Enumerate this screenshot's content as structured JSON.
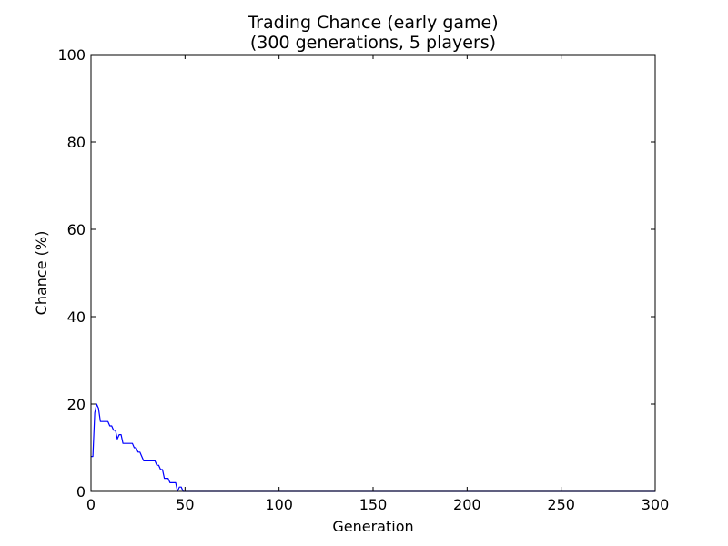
{
  "chart_data": {
    "type": "line",
    "title": "Trading Chance (early game)",
    "subtitle": "(300 generations, 5 players)",
    "xlabel": "Generation",
    "ylabel": "Chance (%)",
    "xlim": [
      0,
      300
    ],
    "ylim": [
      0,
      100
    ],
    "xticks": [
      0,
      50,
      100,
      150,
      200,
      250,
      300
    ],
    "yticks": [
      0,
      20,
      40,
      60,
      80,
      100
    ],
    "grid": false,
    "line_color": "#0000ff",
    "series": [
      {
        "x": [
          0,
          1,
          2,
          3,
          4,
          5,
          6,
          7,
          8,
          9,
          10,
          11,
          12,
          13,
          14,
          15,
          16,
          17,
          18,
          19,
          20,
          21,
          22,
          23,
          24,
          25,
          26,
          27,
          28,
          29,
          30,
          31,
          32,
          33,
          34,
          35,
          36,
          37,
          38,
          39,
          40,
          41,
          42,
          43,
          44,
          45,
          46,
          47,
          48,
          49,
          50,
          60,
          80,
          100,
          150,
          200,
          250,
          300
        ],
        "y": [
          8,
          8,
          18,
          20,
          19,
          16,
          16,
          16,
          16,
          16,
          15,
          15,
          14,
          14,
          12,
          13,
          13,
          11,
          11,
          11,
          11,
          11,
          11,
          10,
          10,
          9,
          9,
          8,
          7,
          7,
          7,
          7,
          7,
          7,
          7,
          6,
          6,
          5,
          5,
          3,
          3,
          3,
          2,
          2,
          2,
          2,
          0,
          1,
          1,
          0,
          0,
          0,
          0,
          0,
          0,
          0,
          0,
          0
        ]
      }
    ]
  }
}
